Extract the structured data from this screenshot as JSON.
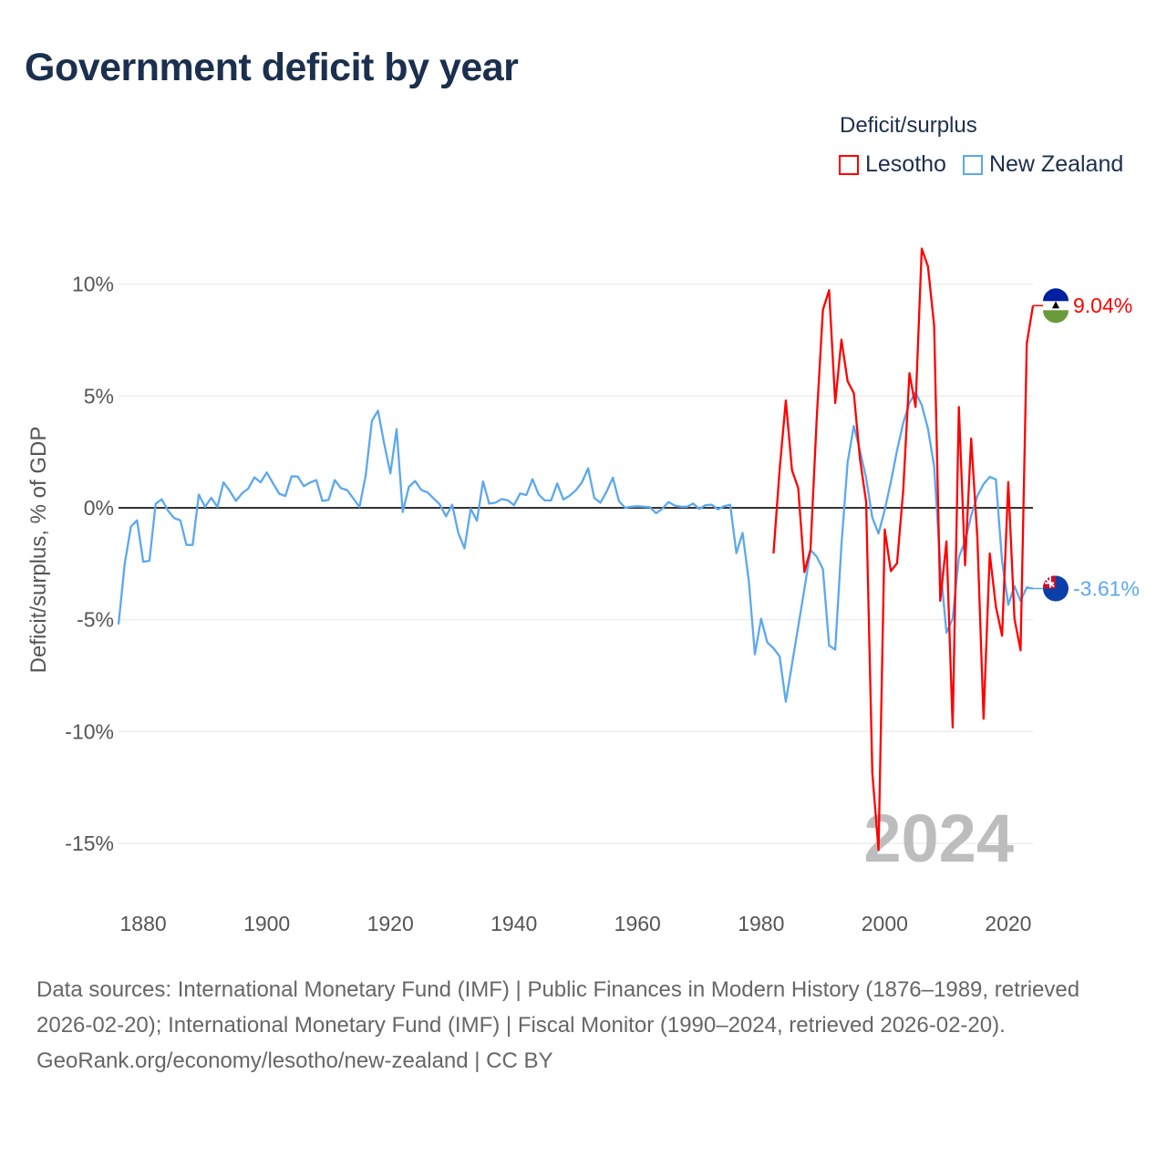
{
  "title": "Government deficit by year",
  "legend": {
    "title": "Deficit/surplus"
  },
  "footer": {
    "sources": "Data sources: International Monetary Fund (IMF) | Public Finances in Modern History (1876–1989, retrieved 2026-02-20); International Monetary Fund (IMF) | Fiscal Monitor (1990–2024, retrieved 2026-02-20).",
    "credit": "GeoRank.org/economy/lesotho/new-zealand | CC BY"
  },
  "chart_data": {
    "type": "line",
    "title": "Government deficit by year",
    "xlabel": "",
    "ylabel": "Deficit/surplus, % of GDP",
    "xlim": [
      1876,
      2024
    ],
    "ylim": [
      -17,
      12.5
    ],
    "x_ticks": [
      1880,
      1900,
      1920,
      1940,
      1960,
      1980,
      2000,
      2020
    ],
    "x_tick_labels": [
      "1880",
      "1900",
      "1920",
      "1940",
      "1960",
      "1980",
      "2000",
      "2020"
    ],
    "y_ticks": [
      10,
      5,
      0,
      -5,
      -10,
      -15
    ],
    "y_tick_labels": [
      "10%",
      "5%",
      "0%",
      "-5%",
      "-10%",
      "-15%"
    ],
    "grid": true,
    "legend_position": "top-right",
    "year_watermark": "2024",
    "series": [
      {
        "name": "Lesotho",
        "color": "#ff0000",
        "flag": "lesotho-flag",
        "end_label": "9.04%",
        "start_year": 1982,
        "values": [
          -2.04,
          1.7,
          4.8,
          1.68,
          0.88,
          -2.88,
          -1.86,
          4.0,
          8.85,
          9.73,
          4.69,
          7.52,
          5.66,
          5.13,
          2.2,
          0.27,
          -11.86,
          -15.3,
          -0.97,
          -2.83,
          -2.48,
          0.8,
          6.02,
          4.51,
          11.59,
          10.8,
          8.14,
          -4.16,
          -1.5,
          -9.82,
          4.51,
          -2.57,
          3.1,
          -1.33,
          -9.43,
          -2.04,
          -4.42,
          -5.72,
          1.15,
          -4.96,
          -6.37,
          7.35,
          9.04
        ]
      },
      {
        "name": "New Zealand",
        "color": "#5ba8ee",
        "flag": "new-zealand-flag",
        "end_label": "-3.61%",
        "start_year": 1876,
        "values": [
          -5.22,
          -2.5,
          -0.84,
          -0.56,
          -2.41,
          -2.37,
          0.18,
          0.38,
          -0.12,
          -0.46,
          -0.56,
          -1.66,
          -1.66,
          0.59,
          0.04,
          0.45,
          0.04,
          1.14,
          0.76,
          0.31,
          0.65,
          0.86,
          1.36,
          1.14,
          1.58,
          1.1,
          0.63,
          0.53,
          1.41,
          1.4,
          0.97,
          1.13,
          1.24,
          0.31,
          0.35,
          1.24,
          0.88,
          0.79,
          0.42,
          0.04,
          1.44,
          3.89,
          4.34,
          2.87,
          1.54,
          3.52,
          -0.19,
          0.94,
          1.2,
          0.8,
          0.69,
          0.42,
          0.15,
          -0.38,
          0.14,
          -1.13,
          -1.81,
          -0.04,
          -0.58,
          1.18,
          0.19,
          0.23,
          0.39,
          0.34,
          0.12,
          0.64,
          0.57,
          1.28,
          0.6,
          0.33,
          0.33,
          1.09,
          0.37,
          0.54,
          0.78,
          1.14,
          1.77,
          0.44,
          0.23,
          0.73,
          1.35,
          0.3,
          0.0,
          0.05,
          0.07,
          0.05,
          0.03,
          -0.24,
          -0.04,
          0.26,
          0.1,
          0.05,
          0.05,
          0.19,
          -0.05,
          0.12,
          0.14,
          -0.07,
          0.07,
          0.14,
          -2.02,
          -1.12,
          -3.27,
          -6.55,
          -4.96,
          -6.02,
          -6.28,
          -6.64,
          -8.67,
          -6.99,
          -5.31,
          -3.63,
          -1.89,
          -2.18,
          -2.74,
          -6.16,
          -6.34,
          -1.68,
          2.04,
          3.66,
          2.57,
          1.33,
          -0.44,
          -1.15,
          -0.09,
          1.15,
          2.57,
          3.8,
          4.69,
          5.17,
          4.6,
          3.54,
          1.86,
          -2.57,
          -5.58,
          -4.96,
          -2.21,
          -1.5,
          -0.35,
          0.53,
          1.06,
          1.38,
          1.27,
          -2.39,
          -4.34,
          -3.5,
          -4.16,
          -3.56,
          -3.61
        ]
      }
    ]
  }
}
